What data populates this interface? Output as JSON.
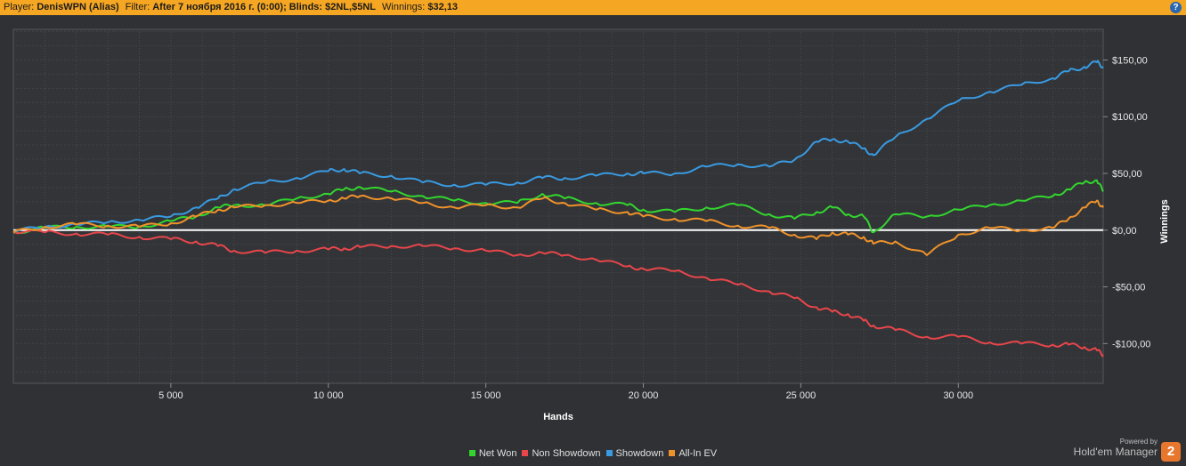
{
  "header": {
    "player_label": "Player:",
    "player_value": "DenisWPN (Alias)",
    "filter_label": "Filter:",
    "filter_value": "After 7 ноября 2016 г. (0:00); Blinds: $2NL,$5NL",
    "winnings_label": "Winnings:",
    "winnings_value": "$32,13",
    "help_glyph": "?"
  },
  "brand": {
    "powered_by": "Powered by",
    "product": "Hold'em Manager",
    "logo_text": "2"
  },
  "chart_data": {
    "type": "line",
    "xlabel": "Hands",
    "ylabel": "Winnings",
    "xlim": [
      0,
      34600
    ],
    "ylim": [
      -135,
      177
    ],
    "x_ticks": [
      5000,
      10000,
      15000,
      20000,
      25000,
      30000
    ],
    "x_tick_labels": [
      "5 000",
      "10 000",
      "15 000",
      "20 000",
      "25 000",
      "30 000"
    ],
    "y_ticks": [
      150,
      100,
      50,
      0,
      -50,
      -100
    ],
    "y_tick_labels": [
      "$150,00",
      "$100,00",
      "$50,00",
      "$0,00",
      "-$50,00",
      "-$100,00"
    ],
    "grid": true,
    "legend_position": "bottom",
    "x": [
      0,
      1000,
      2000,
      3000,
      4000,
      5000,
      5800,
      6500,
      7000,
      8000,
      9000,
      10000,
      10500,
      11000,
      12000,
      13000,
      14000,
      15000,
      16000,
      16800,
      17500,
      18500,
      19500,
      20000,
      21000,
      22000,
      23000,
      24000,
      24800,
      25500,
      26000,
      26500,
      27000,
      27300,
      28000,
      29000,
      30000,
      31000,
      32000,
      33000,
      33500,
      34000,
      34400,
      34600
    ],
    "series": [
      {
        "name": "Net Won",
        "color": "#33d62e",
        "values": [
          -2,
          2,
          3,
          3,
          3,
          8,
          12,
          20,
          22,
          22,
          28,
          32,
          36,
          38,
          34,
          30,
          26,
          24,
          24,
          32,
          28,
          24,
          22,
          18,
          16,
          20,
          22,
          14,
          10,
          16,
          20,
          14,
          12,
          -2,
          14,
          12,
          18,
          22,
          26,
          30,
          36,
          42,
          44,
          34
        ]
      },
      {
        "name": "Non Showdown",
        "color": "#e8464a",
        "values": [
          -1,
          -2,
          -3,
          -4,
          -6,
          -8,
          -10,
          -14,
          -18,
          -20,
          -18,
          -17,
          -16,
          -15,
          -14,
          -14,
          -16,
          -18,
          -22,
          -20,
          -22,
          -26,
          -32,
          -34,
          -36,
          -42,
          -48,
          -54,
          -60,
          -68,
          -72,
          -74,
          -80,
          -84,
          -88,
          -94,
          -94,
          -99,
          -100,
          -101,
          -101,
          -103,
          -106,
          -110
        ]
      },
      {
        "name": "Showdown",
        "color": "#3a9ae0",
        "values": [
          -1,
          3,
          5,
          7,
          9,
          12,
          20,
          28,
          36,
          42,
          46,
          52,
          54,
          50,
          48,
          42,
          40,
          40,
          42,
          46,
          46,
          48,
          50,
          50,
          50,
          56,
          58,
          56,
          62,
          78,
          80,
          78,
          72,
          66,
          82,
          98,
          114,
          122,
          128,
          134,
          140,
          144,
          148,
          144
        ]
      },
      {
        "name": "All-In EV",
        "color": "#f0922a",
        "values": [
          -2,
          3,
          5,
          4,
          3,
          6,
          12,
          18,
          20,
          22,
          24,
          26,
          28,
          30,
          28,
          24,
          20,
          22,
          20,
          28,
          24,
          18,
          16,
          12,
          10,
          8,
          4,
          2,
          -4,
          -8,
          -2,
          -4,
          -6,
          -12,
          -10,
          -22,
          -4,
          2,
          0,
          2,
          10,
          20,
          26,
          20
        ]
      }
    ]
  }
}
